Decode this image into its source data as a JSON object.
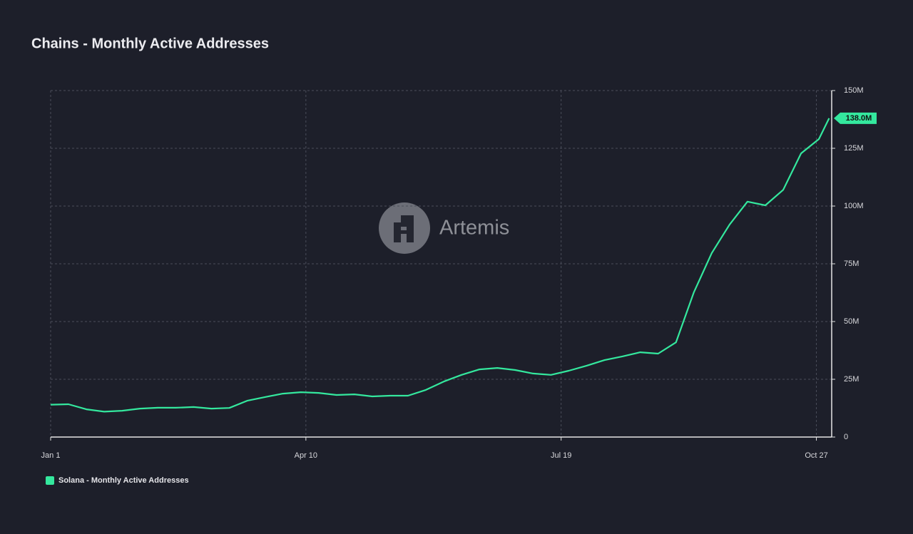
{
  "chart_data": {
    "type": "line",
    "title": "Chains - Monthly Active Addresses",
    "watermark": "Artemis",
    "x": [
      "Jan 1",
      "Jan 8",
      "Jan 15",
      "Jan 22",
      "Jan 29",
      "Feb 5",
      "Feb 12",
      "Feb 19",
      "Feb 26",
      "Mar 4",
      "Mar 11",
      "Mar 18",
      "Mar 25",
      "Apr 1",
      "Apr 8",
      "Apr 15",
      "Apr 22",
      "Apr 29",
      "May 6",
      "May 13",
      "May 20",
      "May 27",
      "Jun 3",
      "Jun 10",
      "Jun 17",
      "Jun 24",
      "Jul 1",
      "Jul 8",
      "Jul 15",
      "Jul 22",
      "Jul 29",
      "Aug 5",
      "Aug 12",
      "Aug 19",
      "Aug 26",
      "Sep 2",
      "Sep 9",
      "Sep 16",
      "Sep 23",
      "Sep 30",
      "Oct 7",
      "Oct 14",
      "Oct 21",
      "Oct 28",
      "Nov 1"
    ],
    "series": [
      {
        "name": "Solana - Monthly Active Addresses",
        "color": "#34e89e",
        "values": [
          14,
          14.2,
          12,
          11,
          11.4,
          12.3,
          12.7,
          12.7,
          13,
          12.3,
          12.6,
          15.7,
          17.3,
          18.8,
          19.4,
          19.1,
          18.2,
          18.5,
          17.6,
          17.9,
          17.9,
          20.4,
          24,
          26.9,
          29.3,
          29.9,
          29,
          27.5,
          26.9,
          28.7,
          30.9,
          33.3,
          34.9,
          36.7,
          36.1,
          41,
          62.7,
          79.6,
          92,
          101.9,
          100.3,
          107,
          122.8,
          129,
          138
        ],
        "value_labels": [
          null,
          null,
          null,
          null,
          null,
          null,
          null,
          null,
          null,
          null,
          null,
          null,
          null,
          null,
          null,
          null,
          null,
          null,
          null,
          null,
          null,
          null,
          null,
          null,
          null,
          null,
          null,
          null,
          null,
          null,
          null,
          null,
          null,
          null,
          null,
          null,
          null,
          null,
          null,
          null,
          null,
          null,
          null,
          null,
          "138.0M"
        ]
      }
    ],
    "xlim": [
      "Jan 1",
      "Nov 2"
    ],
    "xticks": [
      "Jan 1",
      "Apr 10",
      "Jul 19",
      "Oct 27"
    ],
    "ylim": [
      0,
      150
    ],
    "yticks": [
      0,
      {
        "value": 25,
        "label": "25M"
      },
      {
        "value": 50,
        "label": "50M"
      },
      {
        "value": 75,
        "label": "75M"
      },
      {
        "value": 100,
        "label": "100M"
      },
      {
        "value": 125,
        "label": "125M"
      },
      {
        "value": 150,
        "label": "150M"
      }
    ],
    "grid": true,
    "legend": "bottom-left"
  }
}
